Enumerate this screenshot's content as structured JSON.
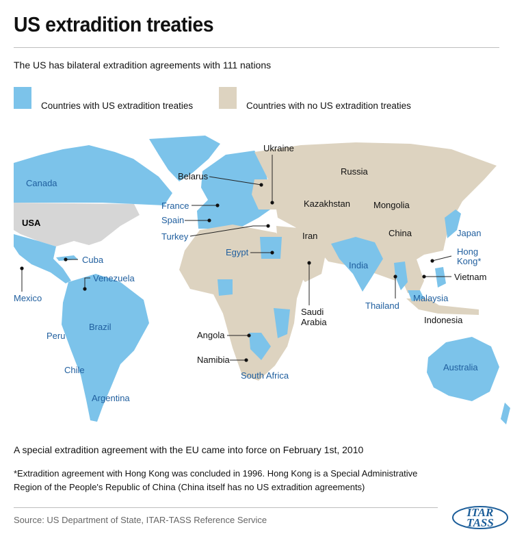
{
  "header": {
    "title": "US extradition treaties",
    "subtitle": "The US has bilateral extradition agreements with 111 nations"
  },
  "legend": {
    "treaty_label": "Countries with US extradition treaties",
    "treaty_color": "#7cc3ea",
    "no_treaty_label": "Countries with no US extradition treaties",
    "no_treaty_color": "#ddd3c0",
    "usa_color": "#d6d6d6"
  },
  "map": {
    "usa": "USA",
    "treaty_labels": [
      "Canada",
      "France",
      "Spain",
      "Turkey",
      "Egypt",
      "Cuba",
      "Venezuela",
      "Mexico",
      "Brazil",
      "Peru",
      "Chile",
      "Argentina",
      "South Africa",
      "India",
      "Thailand",
      "Malaysia",
      "Japan",
      "Hong",
      "Kong*",
      "Australia"
    ],
    "no_treaty_labels": [
      "Ukraine",
      "Belarus",
      "Russia",
      "Kazakhstan",
      "Mongolia",
      "China",
      "Iran",
      "Vietnam",
      "Indonesia",
      "Saudi",
      "Arabia",
      "Angola",
      "Namibia"
    ]
  },
  "notes": {
    "eu": "A special extradition agreement with the EU came into force on February 1st, 2010",
    "hong_kong": "*Extradition agreement with Hong Kong was concluded in 1996. Hong Kong is a Special Administrative Region of the People's Republic of China (China itself has no US extradition agreements)"
  },
  "source": "Source: US Department of State, ITAR-TASS Reference Service",
  "logo": {
    "line1": "ITAR",
    "line2": "TASS"
  }
}
